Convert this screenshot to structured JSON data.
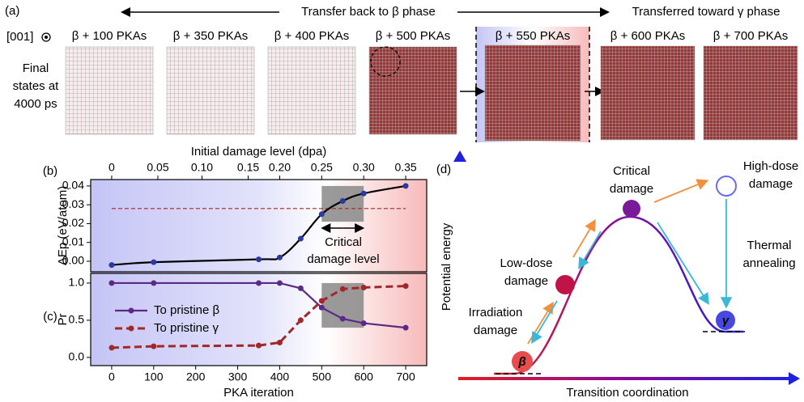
{
  "panel_a": {
    "label": "(a)",
    "arrow_left_text": "Transfer back to β phase",
    "arrow_right_text": "Transferred toward γ phase",
    "orientation": "[001]",
    "row_label": [
      "Final",
      "states at",
      "4000 ps"
    ],
    "snapshots": [
      "β + 100 PKAs",
      "β + 350 PKAs",
      "β + 400 PKAs",
      "β + 500 PKAs",
      "β + 550 PKAs",
      "β + 600 PKAs",
      "β + 700 PKAs"
    ]
  },
  "chart_data": [
    {
      "type": "line",
      "label": "(b)",
      "x2label": "Initial damage level (dpa)",
      "x2ticks": [
        0,
        0.05,
        {
          "value": 0.1,
          "label": "0.10"
        },
        0.15,
        {
          "value": 0.2,
          "label": "0.20"
        },
        0.25,
        {
          "value": 0.3,
          "label": "0.30"
        },
        0.35
      ],
      "x2ticks_pka": [
        0,
        110,
        215,
        325,
        400,
        500,
        600,
        700
      ],
      "ylabel": "ΔEp (eV/atom)",
      "x": [
        0,
        100,
        350,
        400,
        450,
        500,
        550,
        600,
        700
      ],
      "series": [
        {
          "color": "#000000",
          "marker_color": "#2b3a9c",
          "values": [
            -0.002,
            -0.0005,
            0.001,
            0.002,
            0.012,
            0.025,
            0.032,
            0.036,
            0.04
          ]
        }
      ],
      "smooth": true,
      "xlim": [
        -50,
        750
      ],
      "ylim": [
        -0.0056,
        0.0434
      ],
      "yticks": [
        {
          "value": 0,
          "label": "0.00"
        },
        0.01,
        0.02,
        0.03,
        0.04
      ],
      "reference_line": 0.028,
      "reference_color": "#a0282a",
      "highlight": {
        "x": [
          500,
          600
        ],
        "y": [
          0.021,
          0.04
        ]
      },
      "annotation": [
        "Critical",
        "damage level"
      ]
    },
    {
      "type": "line",
      "label": "(c)",
      "xlabel": "PKA iteration",
      "ylabel": "Pr",
      "x": [
        0,
        100,
        350,
        400,
        450,
        500,
        550,
        600,
        700
      ],
      "series": [
        {
          "name": "To pristine β",
          "color": "#5c2a86",
          "dash": false,
          "values": [
            1.0,
            1.0,
            1.0,
            1.0,
            0.93,
            0.67,
            0.52,
            0.46,
            0.4
          ]
        },
        {
          "name": "To pristine γ",
          "color": "#a0282a",
          "dash": true,
          "values": [
            0.13,
            0.15,
            0.16,
            0.2,
            0.5,
            0.76,
            0.92,
            0.94,
            0.96
          ]
        }
      ],
      "xlim": [
        -50,
        750
      ],
      "ylim": [
        -0.11,
        1.13
      ],
      "xticks": [
        0,
        100,
        200,
        300,
        400,
        500,
        600,
        700
      ],
      "yticks": [
        {
          "value": 0,
          "label": "0.0"
        },
        0.5,
        {
          "value": 1,
          "label": "1.0"
        }
      ],
      "highlight": {
        "x": [
          500,
          600
        ],
        "y": [
          0.4,
          1.0
        ]
      },
      "legend": "lower left"
    }
  ],
  "panel_d": {
    "label": "(d)",
    "ylabel": "Potential energy",
    "xlabel": "Transition coordination",
    "critical": [
      "Critical",
      "damage"
    ],
    "high_dose": [
      "High-dose",
      "damage"
    ],
    "thermal": [
      "Thermal",
      "annealing"
    ],
    "low_dose": [
      "Low-dose",
      "damage"
    ],
    "irradiation": [
      "Irradiation",
      "damage"
    ],
    "beta": "β",
    "gamma": "γ"
  }
}
